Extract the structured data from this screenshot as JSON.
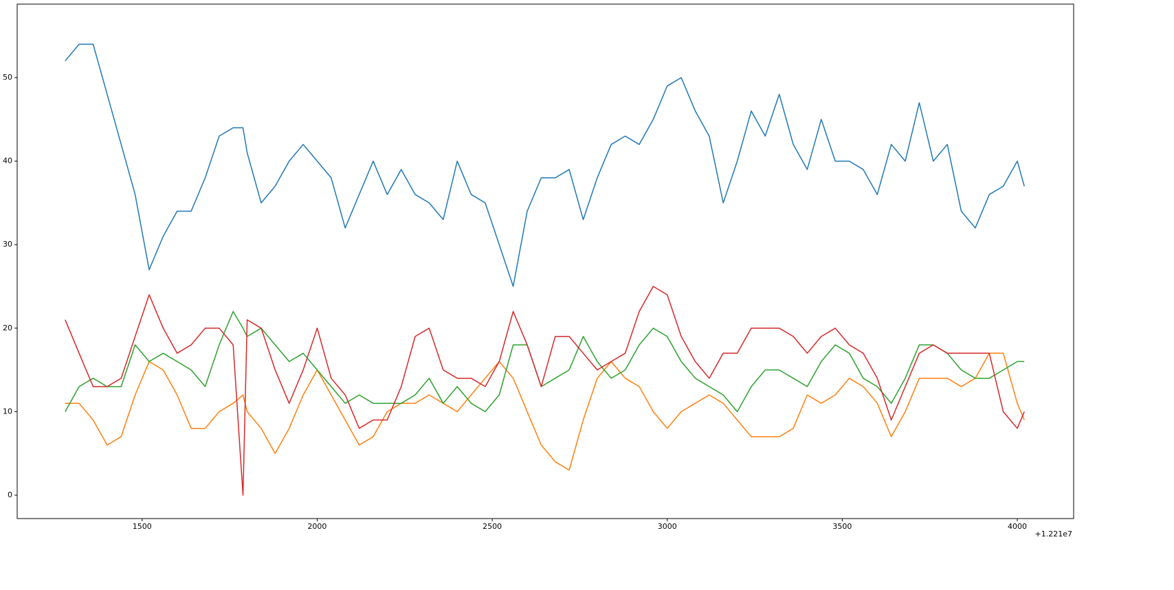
{
  "chart_data": {
    "type": "line",
    "x": [
      1280,
      1320,
      1360,
      1400,
      1440,
      1480,
      1520,
      1560,
      1600,
      1640,
      1680,
      1720,
      1760,
      1788,
      1800,
      1840,
      1880,
      1920,
      1960,
      2000,
      2040,
      2080,
      2120,
      2160,
      2200,
      2240,
      2280,
      2320,
      2360,
      2400,
      2440,
      2480,
      2520,
      2560,
      2600,
      2640,
      2680,
      2720,
      2760,
      2800,
      2840,
      2880,
      2920,
      2960,
      3000,
      3040,
      3080,
      3120,
      3160,
      3200,
      3240,
      3280,
      3320,
      3360,
      3400,
      3440,
      3480,
      3520,
      3560,
      3600,
      3640,
      3680,
      3720,
      3760,
      3800,
      3840,
      3880,
      3920,
      3960,
      4000,
      4020
    ],
    "series": [
      {
        "color": "#1f77b4",
        "values": [
          52,
          54,
          54,
          48,
          42,
          36,
          27,
          31,
          34,
          34,
          38,
          43,
          44,
          44,
          41,
          35,
          37,
          40,
          42,
          40,
          38,
          32,
          36,
          40,
          36,
          39,
          36,
          35,
          33,
          40,
          36,
          35,
          30,
          25,
          34,
          38,
          38,
          39,
          33,
          38,
          42,
          43,
          42,
          45,
          49,
          50,
          46,
          43,
          35,
          40,
          46,
          43,
          48,
          42,
          39,
          45,
          40,
          40,
          39,
          36,
          42,
          40,
          47,
          40,
          42,
          34,
          32,
          36,
          37,
          40,
          37
        ]
      },
      {
        "color": "#ff7f0e",
        "values": [
          11,
          11,
          9,
          6,
          7,
          12,
          16,
          15,
          12,
          8,
          8,
          10,
          11,
          12,
          10,
          8,
          5,
          8,
          12,
          15,
          12,
          9,
          6,
          7,
          10,
          11,
          11,
          12,
          11,
          10,
          12,
          14,
          16,
          14,
          10,
          6,
          4,
          3,
          9,
          14,
          16,
          14,
          13,
          10,
          8,
          10,
          11,
          12,
          11,
          9,
          7,
          7,
          7,
          8,
          12,
          11,
          12,
          14,
          13,
          11,
          7,
          10,
          14,
          14,
          14,
          13,
          14,
          17,
          17,
          11,
          9
        ]
      },
      {
        "color": "#2ca02c",
        "values": [
          10,
          13,
          14,
          13,
          13,
          18,
          16,
          17,
          16,
          15,
          13,
          18,
          22,
          20,
          19,
          20,
          18,
          16,
          17,
          15,
          13,
          11,
          12,
          11,
          11,
          11,
          12,
          14,
          11,
          13,
          11,
          10,
          12,
          18,
          18,
          13,
          14,
          15,
          19,
          16,
          14,
          15,
          18,
          20,
          19,
          16,
          14,
          13,
          12,
          10,
          13,
          15,
          15,
          14,
          13,
          16,
          18,
          17,
          14,
          13,
          11,
          14,
          18,
          18,
          17,
          15,
          14,
          14,
          15,
          16,
          16
        ]
      },
      {
        "color": "#d62728",
        "values": [
          21,
          17,
          13,
          13,
          14,
          19,
          24,
          20,
          17,
          18,
          20,
          20,
          18,
          0,
          21,
          20,
          15,
          11,
          15,
          20,
          14,
          12,
          8,
          9,
          9,
          13,
          19,
          20,
          15,
          14,
          14,
          13,
          16,
          22,
          18,
          13,
          19,
          19,
          17,
          15,
          16,
          17,
          22,
          25,
          24,
          19,
          16,
          14,
          17,
          17,
          20,
          20,
          20,
          19,
          17,
          19,
          20,
          18,
          17,
          14,
          9,
          13,
          17,
          18,
          17,
          17,
          17,
          17,
          10,
          8,
          10
        ]
      }
    ],
    "xlim": [
      1143,
      4161
    ],
    "xticks": [
      1500,
      2000,
      2500,
      3000,
      3500,
      4000
    ],
    "x_offset_label": "+1.221e7",
    "ylim": [
      -2.8,
      58.8
    ],
    "yticks": [
      0,
      10,
      20,
      30,
      40,
      50
    ]
  }
}
